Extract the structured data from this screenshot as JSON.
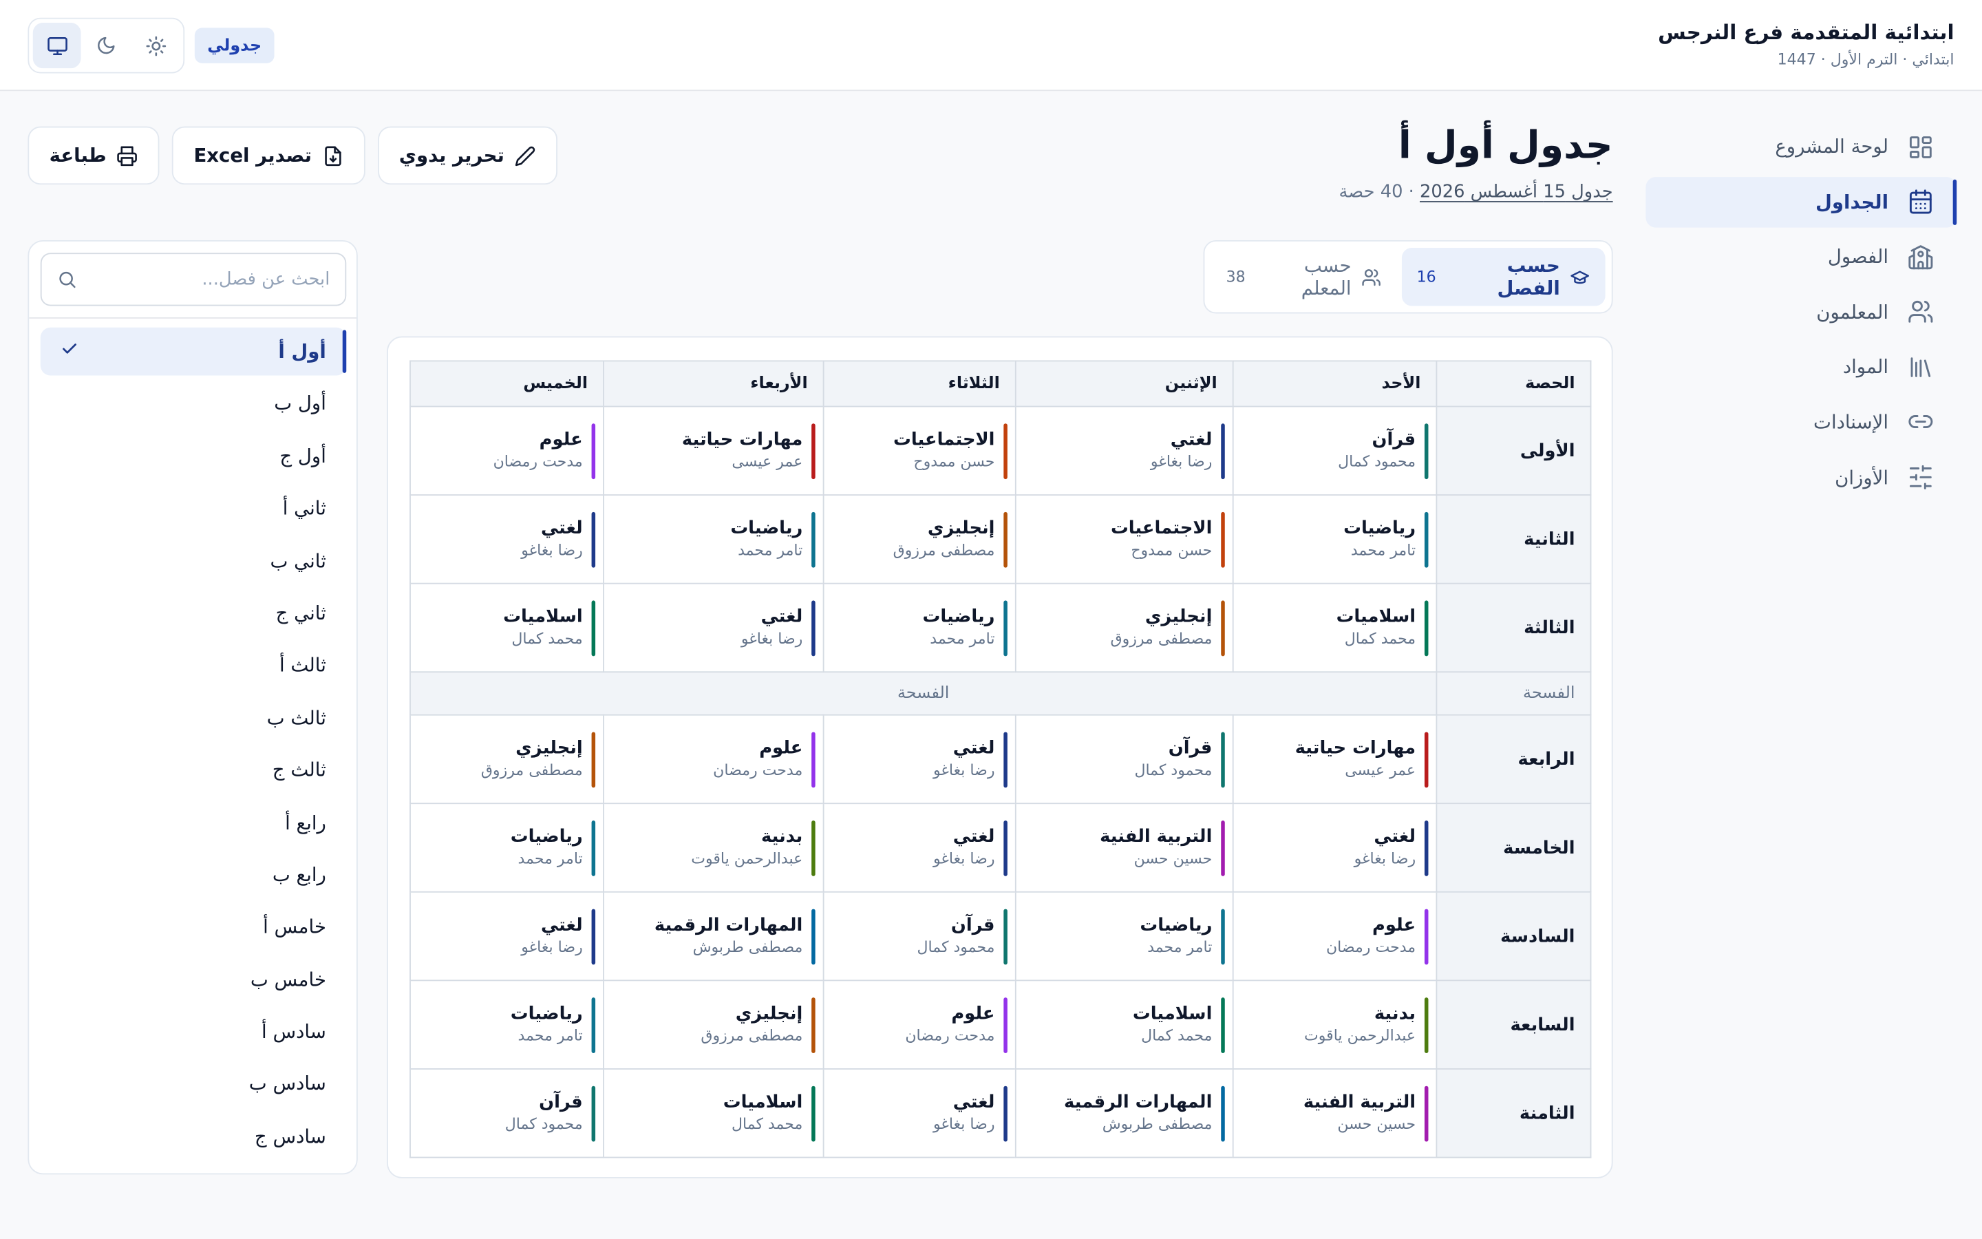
{
  "header": {
    "school_name": "ابتدائية المتقدمة فرع النرجس",
    "school_sub": "ابتدائي · الترم الأول · 1447",
    "my_schedule_badge": "جدولي",
    "theme": {
      "system_icon": "monitor-icon",
      "dark_icon": "moon-icon",
      "light_icon": "sun-icon",
      "active": "system"
    }
  },
  "sidebar": {
    "items": [
      {
        "label": "لوحة المشروع",
        "icon": "dashboard-icon",
        "active": false
      },
      {
        "label": "الجداول",
        "icon": "calendar-icon",
        "active": true
      },
      {
        "label": "الفصول",
        "icon": "school-icon",
        "active": false
      },
      {
        "label": "المعلمون",
        "icon": "users-icon",
        "active": false
      },
      {
        "label": "المواد",
        "icon": "library-icon",
        "active": false
      },
      {
        "label": "الإسنادات",
        "icon": "link-icon",
        "active": false
      },
      {
        "label": "الأوزان",
        "icon": "sliders-icon",
        "active": false
      }
    ]
  },
  "page": {
    "title": "جدول أول أ",
    "sub_link": "جدول 15 أغسطس 2026",
    "sub_sep": " · ",
    "sub_count": "40 حصة"
  },
  "actions": {
    "edit": "تحرير يدوي",
    "export": "تصدير Excel",
    "print": "طباعة"
  },
  "view_tabs": {
    "by_class": {
      "label": "حسب الفصل",
      "count": "16"
    },
    "by_teacher": {
      "label": "حسب المعلم",
      "count": "38"
    }
  },
  "search": {
    "placeholder": "ابحث عن فصل..."
  },
  "classes": [
    "أول أ",
    "أول ب",
    "أول ج",
    "ثاني أ",
    "ثاني ب",
    "ثاني ج",
    "ثالث أ",
    "ثالث ب",
    "ثالث ج",
    "رابع أ",
    "رابع ب",
    "خامس أ",
    "خامس ب",
    "سادس أ",
    "سادس ب",
    "سادس ج"
  ],
  "selected_class_index": 0,
  "colors": {
    "quran": "#0f766e",
    "lughati": "#1e3a8a",
    "social": "#c2410c",
    "math": "#0e7490",
    "english": "#b45309",
    "islamic": "#047857",
    "science": "#9333ea",
    "life_skills": "#b91c1c",
    "art": "#a21caf",
    "pe": "#4d7c0f",
    "digital": "#0369a1"
  },
  "schedule": {
    "header": {
      "period": "الحصة",
      "days": [
        "الأحد",
        "الإثنين",
        "الثلاثاء",
        "الأربعاء",
        "الخميس"
      ]
    },
    "rows": [
      {
        "name": "الأولى",
        "cells": [
          {
            "subject": "قرآن",
            "teacher": "محمود كمال",
            "color": "quran"
          },
          {
            "subject": "لغتي",
            "teacher": "رضا بغاغو",
            "color": "lughati"
          },
          {
            "subject": "الاجتماعيات",
            "teacher": "حسن ممدوح",
            "color": "social"
          },
          {
            "subject": "مهارات حياتية",
            "teacher": "عمر عيسى",
            "color": "life_skills"
          },
          {
            "subject": "علوم",
            "teacher": "مدحت رمضان",
            "color": "science"
          }
        ]
      },
      {
        "name": "الثانية",
        "cells": [
          {
            "subject": "رياضيات",
            "teacher": "تامر محمد",
            "color": "math"
          },
          {
            "subject": "الاجتماعيات",
            "teacher": "حسن ممدوح",
            "color": "social"
          },
          {
            "subject": "إنجليزي",
            "teacher": "مصطفى مرزوق",
            "color": "english"
          },
          {
            "subject": "رياضيات",
            "teacher": "تامر محمد",
            "color": "math"
          },
          {
            "subject": "لغتي",
            "teacher": "رضا بغاغو",
            "color": "lughati"
          }
        ]
      },
      {
        "name": "الثالثة",
        "cells": [
          {
            "subject": "اسلاميات",
            "teacher": "محمد كمال",
            "color": "islamic"
          },
          {
            "subject": "إنجليزي",
            "teacher": "مصطفى مرزوق",
            "color": "english"
          },
          {
            "subject": "رياضيات",
            "teacher": "تامر محمد",
            "color": "math"
          },
          {
            "subject": "لغتي",
            "teacher": "رضا بغاغو",
            "color": "lughati"
          },
          {
            "subject": "اسلاميات",
            "teacher": "محمد كمال",
            "color": "islamic"
          }
        ]
      },
      {
        "break": true,
        "name": "الفسحة",
        "label": "الفسحة"
      },
      {
        "name": "الرابعة",
        "cells": [
          {
            "subject": "مهارات حياتية",
            "teacher": "عمر عيسى",
            "color": "life_skills"
          },
          {
            "subject": "قرآن",
            "teacher": "محمود كمال",
            "color": "quran"
          },
          {
            "subject": "لغتي",
            "teacher": "رضا بغاغو",
            "color": "lughati"
          },
          {
            "subject": "علوم",
            "teacher": "مدحت رمضان",
            "color": "science"
          },
          {
            "subject": "إنجليزي",
            "teacher": "مصطفى مرزوق",
            "color": "english"
          }
        ]
      },
      {
        "name": "الخامسة",
        "cells": [
          {
            "subject": "لغتي",
            "teacher": "رضا بغاغو",
            "color": "lughati"
          },
          {
            "subject": "التربية الفنية",
            "teacher": "حسين حسن",
            "color": "art"
          },
          {
            "subject": "لغتي",
            "teacher": "رضا بغاغو",
            "color": "lughati"
          },
          {
            "subject": "بدنية",
            "teacher": "عبدالرحمن ياقوت",
            "color": "pe"
          },
          {
            "subject": "رياضيات",
            "teacher": "تامر محمد",
            "color": "math"
          }
        ]
      },
      {
        "name": "السادسة",
        "cells": [
          {
            "subject": "علوم",
            "teacher": "مدحت رمضان",
            "color": "science"
          },
          {
            "subject": "رياضيات",
            "teacher": "تامر محمد",
            "color": "math"
          },
          {
            "subject": "قرآن",
            "teacher": "محمود كمال",
            "color": "quran"
          },
          {
            "subject": "المهارات الرقمية",
            "teacher": "مصطفى طربوش",
            "color": "digital"
          },
          {
            "subject": "لغتي",
            "teacher": "رضا بغاغو",
            "color": "lughati"
          }
        ]
      },
      {
        "name": "السابعة",
        "cells": [
          {
            "subject": "بدنية",
            "teacher": "عبدالرحمن ياقوت",
            "color": "pe"
          },
          {
            "subject": "اسلاميات",
            "teacher": "محمد كمال",
            "color": "islamic"
          },
          {
            "subject": "علوم",
            "teacher": "مدحت رمضان",
            "color": "science"
          },
          {
            "subject": "إنجليزي",
            "teacher": "مصطفى مرزوق",
            "color": "english"
          },
          {
            "subject": "رياضيات",
            "teacher": "تامر محمد",
            "color": "math"
          }
        ]
      },
      {
        "name": "الثامنة",
        "cells": [
          {
            "subject": "التربية الفنية",
            "teacher": "حسين حسن",
            "color": "art"
          },
          {
            "subject": "المهارات الرقمية",
            "teacher": "مصطفى طربوش",
            "color": "digital"
          },
          {
            "subject": "لغتي",
            "teacher": "رضا بغاغو",
            "color": "lughati"
          },
          {
            "subject": "اسلاميات",
            "teacher": "محمد كمال",
            "color": "islamic"
          },
          {
            "subject": "قرآن",
            "teacher": "محمود كمال",
            "color": "quran"
          }
        ]
      }
    ]
  }
}
